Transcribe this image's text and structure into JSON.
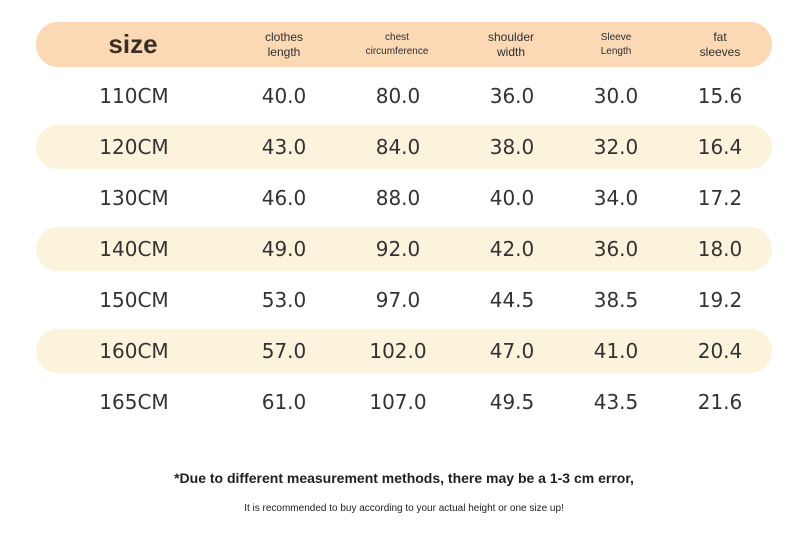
{
  "table": {
    "headers": [
      {
        "lines": [
          "size"
        ]
      },
      {
        "lines": [
          "clothes",
          "length"
        ]
      },
      {
        "lines": [
          "chest",
          "circumference"
        ]
      },
      {
        "lines": [
          "shoulder",
          "width"
        ]
      },
      {
        "lines": [
          "Sleeve",
          "Length"
        ]
      },
      {
        "lines": [
          "fat",
          "sleeves"
        ]
      }
    ],
    "rows": [
      [
        "110CM",
        "40.0",
        "80.0",
        "36.0",
        "30.0",
        "15.6"
      ],
      [
        "120CM",
        "43.0",
        "84.0",
        "38.0",
        "32.0",
        "16.4"
      ],
      [
        "130CM",
        "46.0",
        "88.0",
        "40.0",
        "34.0",
        "17.2"
      ],
      [
        "140CM",
        "49.0",
        "92.0",
        "42.0",
        "36.0",
        "18.0"
      ],
      [
        "150CM",
        "53.0",
        "97.0",
        "44.5",
        "38.5",
        "19.2"
      ],
      [
        "160CM",
        "57.0",
        "102.0",
        "47.0",
        "41.0",
        "20.4"
      ],
      [
        "165CM",
        "61.0",
        "107.0",
        "49.5",
        "43.5",
        "21.6"
      ]
    ]
  },
  "notes": {
    "line1": "*Due to different measurement methods, there may be a 1-3 cm error,",
    "line2": "It is recommended to buy according to your actual height or one size up!"
  },
  "colors": {
    "header_band": "#fbd9b4",
    "row_band": "#fbf3dc"
  }
}
